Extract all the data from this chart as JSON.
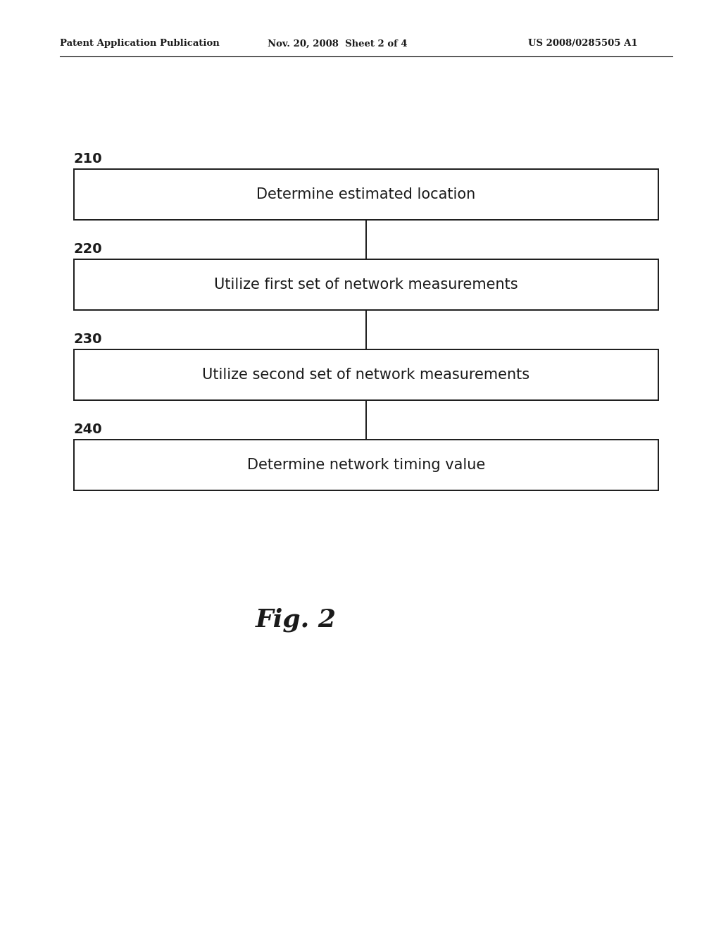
{
  "header_left": "Patent Application Publication",
  "header_mid": "Nov. 20, 2008  Sheet 2 of 4",
  "header_right": "US 2008/0285505 A1",
  "background_color": "#ffffff",
  "box_edge_color": "#1a1a1a",
  "text_color": "#1a1a1a",
  "boxes": [
    {
      "label": "210",
      "text": "Determine estimated location",
      "fontsize": 15
    },
    {
      "label": "220",
      "text": "Utilize first set of network measurements",
      "fontsize": 15
    },
    {
      "label": "230",
      "text": "Utilize second set of network measurements",
      "fontsize": 15
    },
    {
      "label": "240",
      "text": "Determine network timing value",
      "fontsize": 15
    }
  ],
  "figure_label": "Fig. 2",
  "figure_label_fontsize": 26
}
